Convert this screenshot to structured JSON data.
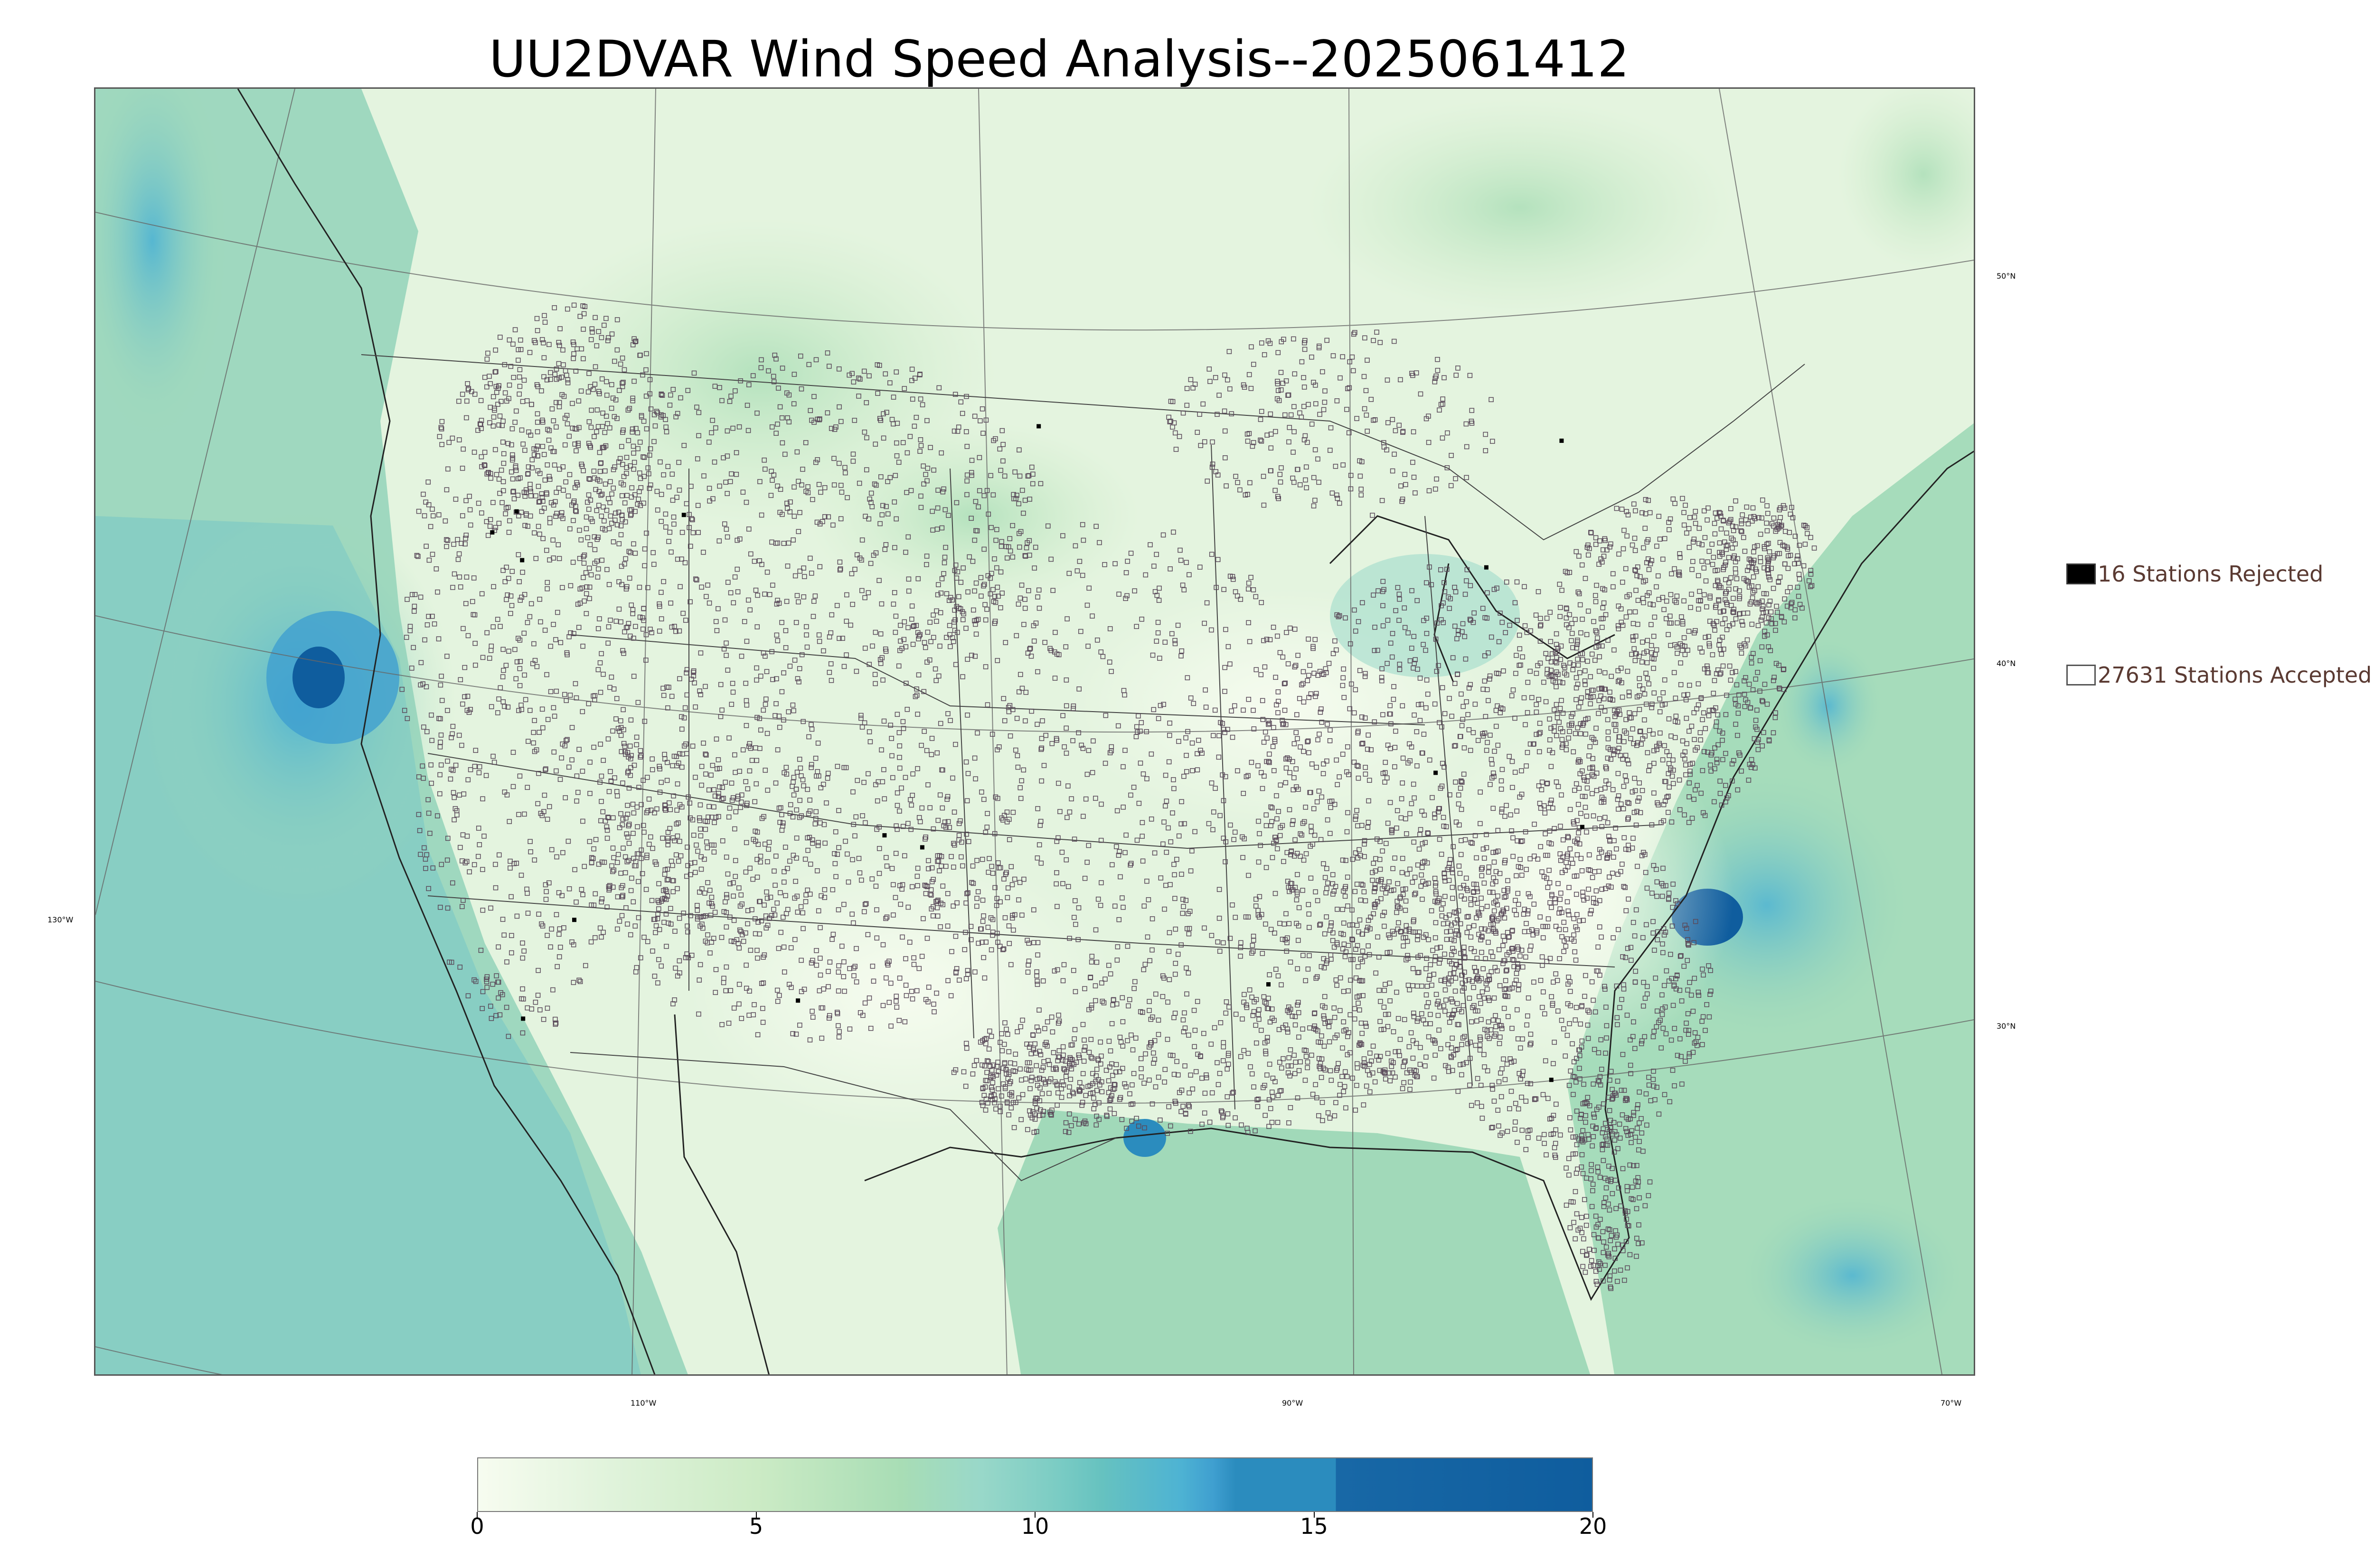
{
  "title": "UU2DVAR Wind Speed Analysis--2025061412",
  "graticule": {
    "lat_labels": [
      "50°N",
      "40°N",
      "30°N"
    ],
    "lon_labels": [
      "130°W",
      "110°W",
      "90°W",
      "70°W"
    ]
  },
  "legend": {
    "rejected": {
      "text": "16 Stations Rejected",
      "count": 16,
      "marker": "filled-black-square"
    },
    "accepted": {
      "text": "27631 Stations Accepted",
      "count": 27631,
      "marker": "hollow-square"
    }
  },
  "colorbar": {
    "tick_labels": [
      "0",
      "5",
      "10",
      "15",
      "20"
    ],
    "range": [
      0,
      20
    ],
    "colormap": "GnBu"
  },
  "colors": {
    "land_light": "#e9f5e4",
    "ocean_mid": "#a8ddb5",
    "high_wind": "#2b8cbe",
    "max_wind": "#0f5d9e",
    "legend_text": "#5a3a32"
  }
}
